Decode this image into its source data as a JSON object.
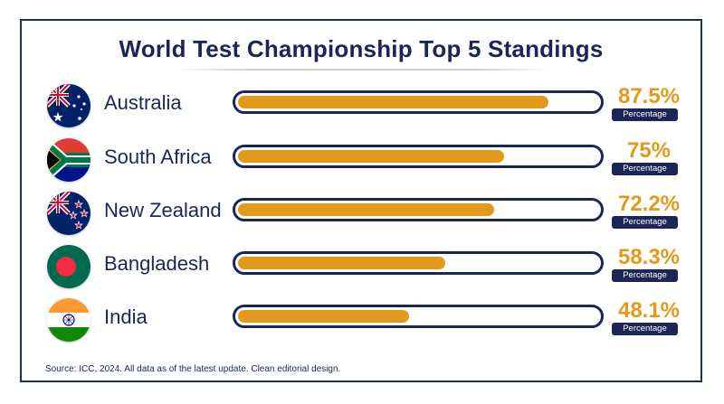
{
  "chart_data": {
    "type": "bar",
    "title": "World Test Championship Top 5 Standings",
    "categories": [
      "Australia",
      "South Africa",
      "New Zealand",
      "Bangladesh",
      "India"
    ],
    "values": [
      87.5,
      75,
      72.2,
      58.3,
      48.1
    ],
    "value_labels": [
      "87.5%",
      "75%",
      "72.2%",
      "58.3%",
      "48.1%"
    ],
    "value_caption": "Percentage",
    "ylim": [
      0,
      100
    ],
    "orientation": "horizontal"
  },
  "footer": {
    "source": "Source: ICC, 2024. All data as of the latest update. Clean editorial design."
  },
  "colors": {
    "accent": "#e39a1a",
    "navy": "#1b2656",
    "track_bg": "#ffffff"
  },
  "flags": [
    "australia-flag-icon",
    "south-africa-flag-icon",
    "new-zealand-flag-icon",
    "bangladesh-flag-icon",
    "india-flag-icon"
  ]
}
